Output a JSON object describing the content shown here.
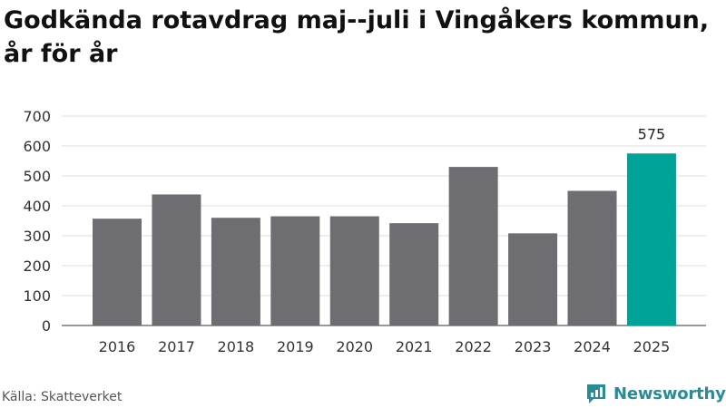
{
  "title": "Godkända rotavdrag maj--juli i Vingåkers kommun, år för år",
  "source": "Källa: Skatteverket",
  "brand": {
    "name": "Newsworthy",
    "icon": "newsworthy-logo-icon",
    "color": "#2a8a96"
  },
  "chart_data": {
    "type": "bar",
    "categories": [
      "2016",
      "2017",
      "2018",
      "2019",
      "2020",
      "2021",
      "2022",
      "2023",
      "2024",
      "2025"
    ],
    "values": [
      357,
      438,
      360,
      365,
      365,
      342,
      530,
      308,
      450,
      575
    ],
    "highlight_label": "575",
    "ylim": [
      0,
      700
    ],
    "yticks": [
      "0",
      "100",
      "200",
      "300",
      "400",
      "500",
      "600",
      "700"
    ],
    "grid": true,
    "colors": {
      "bar": "#6d6d72",
      "highlight": "#00a398",
      "grid": "#dddddd"
    }
  }
}
